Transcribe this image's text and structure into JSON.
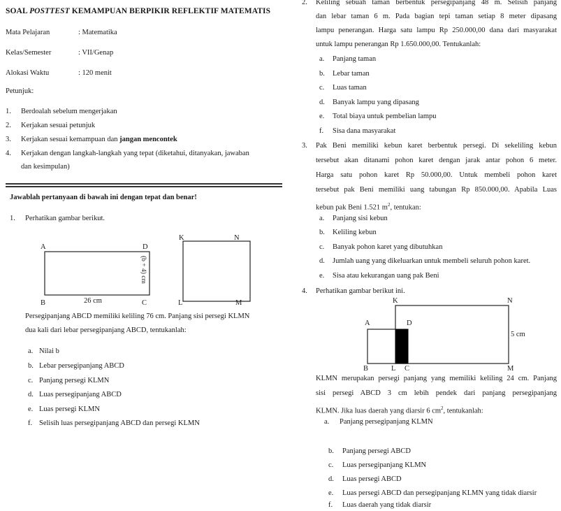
{
  "header": {
    "title_prefix": "SOAL ",
    "title_italic": "POSTTEST",
    "title_rest": " KEMAMPUAN BERPIKIR REFLEKTIF MATEMATIS"
  },
  "meta": [
    {
      "label": "Mata Pelajaran",
      "value": ": Matematika"
    },
    {
      "label": "Kelas/Semester",
      "value": ": VII/Genap"
    },
    {
      "label": "Alokasi Waktu",
      "value": ": 120 menit"
    }
  ],
  "petunjuk": {
    "heading": "Petunjuk:",
    "items": [
      {
        "num": "1.",
        "text": "Berdoalah sebelum mengerjakan"
      },
      {
        "num": "2.",
        "text": "Kerjakan sesuai petunjuk"
      },
      {
        "num": "3.",
        "text_before": "Kerjakan sesuai kemampuan dan ",
        "text_bold": "jangan mencontek"
      },
      {
        "num": "4.",
        "text_line1": "Kerjakan dengan langkah-langkah yang tepat (diketahui, ditanyakan, jawaban",
        "text_line2": "dan kesimpulan)"
      }
    ]
  },
  "instruction": "Jawablah pertanyaan di bawah ini dengan tepat dan benar!",
  "q1": {
    "num": "1.",
    "intro": "Perhatikan gambar berikut.",
    "fig": {
      "A": "A",
      "B": "B",
      "C": "C",
      "D": "D",
      "width_label": "26 cm",
      "height_label": "(b + 4) cm",
      "K": "K",
      "L": "L",
      "M": "M",
      "N": "N"
    },
    "para_line1": "Persegipanjang ABCD memiliki keliling 76 cm. Panjang sisi persegi KLMN",
    "para_line2": "dua kali dari lebar persegipanjang ABCD, tentukanlah:",
    "subs": [
      {
        "l": "a.",
        "t": "Nilai b"
      },
      {
        "l": "b.",
        "t": "Lebar persegipanjang ABCD"
      },
      {
        "l": "c.",
        "t": "Panjang persegi KLMN"
      },
      {
        "l": "d.",
        "t": "Luas persegipanjang ABCD"
      },
      {
        "l": "e.",
        "t": "Luas persegi KLMN"
      },
      {
        "l": "f.",
        "t": "Selisih luas persegipanjang ABCD dan persegi KLMN"
      }
    ]
  },
  "q2": {
    "num": "2.",
    "lines": [
      "Keliling sebuah taman berbentuk persegipanjang 48 m. Selisih panjang",
      "dan lebar taman 6 m. Pada bagian tepi taman setiap 8 meter dipasang",
      "lampu penerangan. Harga satu lampu Rp 250.000,00  dana dari masyarakat",
      "untuk lampu penerangan Rp 1.650.000,00. Tentukanlah:"
    ],
    "subs": [
      {
        "l": "a.",
        "t": "Panjang taman"
      },
      {
        "l": "b.",
        "t": "Lebar taman"
      },
      {
        "l": "c.",
        "t": "Luas taman"
      },
      {
        "l": "d.",
        "t": "Banyak lampu yang dipasang"
      },
      {
        "l": "e.",
        "t": "Total biaya untuk pembelian lampu"
      },
      {
        "l": "f.",
        "t": "Sisa dana masyarakat"
      }
    ]
  },
  "q3": {
    "num": "3.",
    "lines": [
      "Pak Beni memiliki kebun karet berbentuk persegi. Di sekeliling kebun",
      "tersebut akan ditanami pohon karet dengan jarak antar pohon 6 meter.",
      "Harga satu pohon karet Rp 50.000,00. Untuk membeli pohon karet",
      "tersebut pak Beni memiliki uang tabungan Rp 850.000,00. Apabila Luas"
    ],
    "last_line_before": "kebun pak Beni 1.521 m",
    "last_line_sup": "2",
    "last_line_after": ", tentukan:",
    "subs": [
      {
        "l": "a.",
        "t": "Panjang sisi kebun"
      },
      {
        "l": "b.",
        "t": "Keliling kebun"
      },
      {
        "l": "c.",
        "t": "Banyak pohon karet yang dibutuhkan"
      },
      {
        "l": "d.",
        "t": "Jumlah uang yang dikeluarkan untuk membeli seluruh pohon karet."
      },
      {
        "l": "e.",
        "t": "Sisa atau kekurangan uang pak Beni"
      }
    ]
  },
  "q4": {
    "num": "4.",
    "intro": "Perhatikan gambar berikut ini.",
    "fig": {
      "K": "K",
      "N": "N",
      "A": "A",
      "D": "D",
      "B": "B",
      "L": "L",
      "C": "C",
      "M": "M",
      "height_label": "5 cm"
    },
    "para_line1": "KLMN merupakan persegi panjang yang memiliki keliling 24 cm. Panjang",
    "para_line2": "sisi persegi ABCD 3 cm lebih pendek dari panjang persegipanjang",
    "para_line3_before": "KLMN. Jika luas daerah yang diarsir 6 cm",
    "para_line3_sup": "2",
    "para_line3_after": ", tentukanlah:",
    "subs": [
      {
        "l": "a.",
        "t": "Panjang persegipanjang KLMN"
      },
      {
        "l": "b.",
        "t": "Panjang persegi ABCD"
      },
      {
        "l": "c.",
        "t": "Luas persegipanjang KLMN"
      },
      {
        "l": "d.",
        "t": "Luas persegi ABCD"
      },
      {
        "l": "e.",
        "t": "Luas persegi ABCD dan persegipanjang KLMN yang tidak diarsir"
      },
      {
        "l": "f.",
        "t": "Luas daerah yang tidak diarsir"
      }
    ]
  }
}
